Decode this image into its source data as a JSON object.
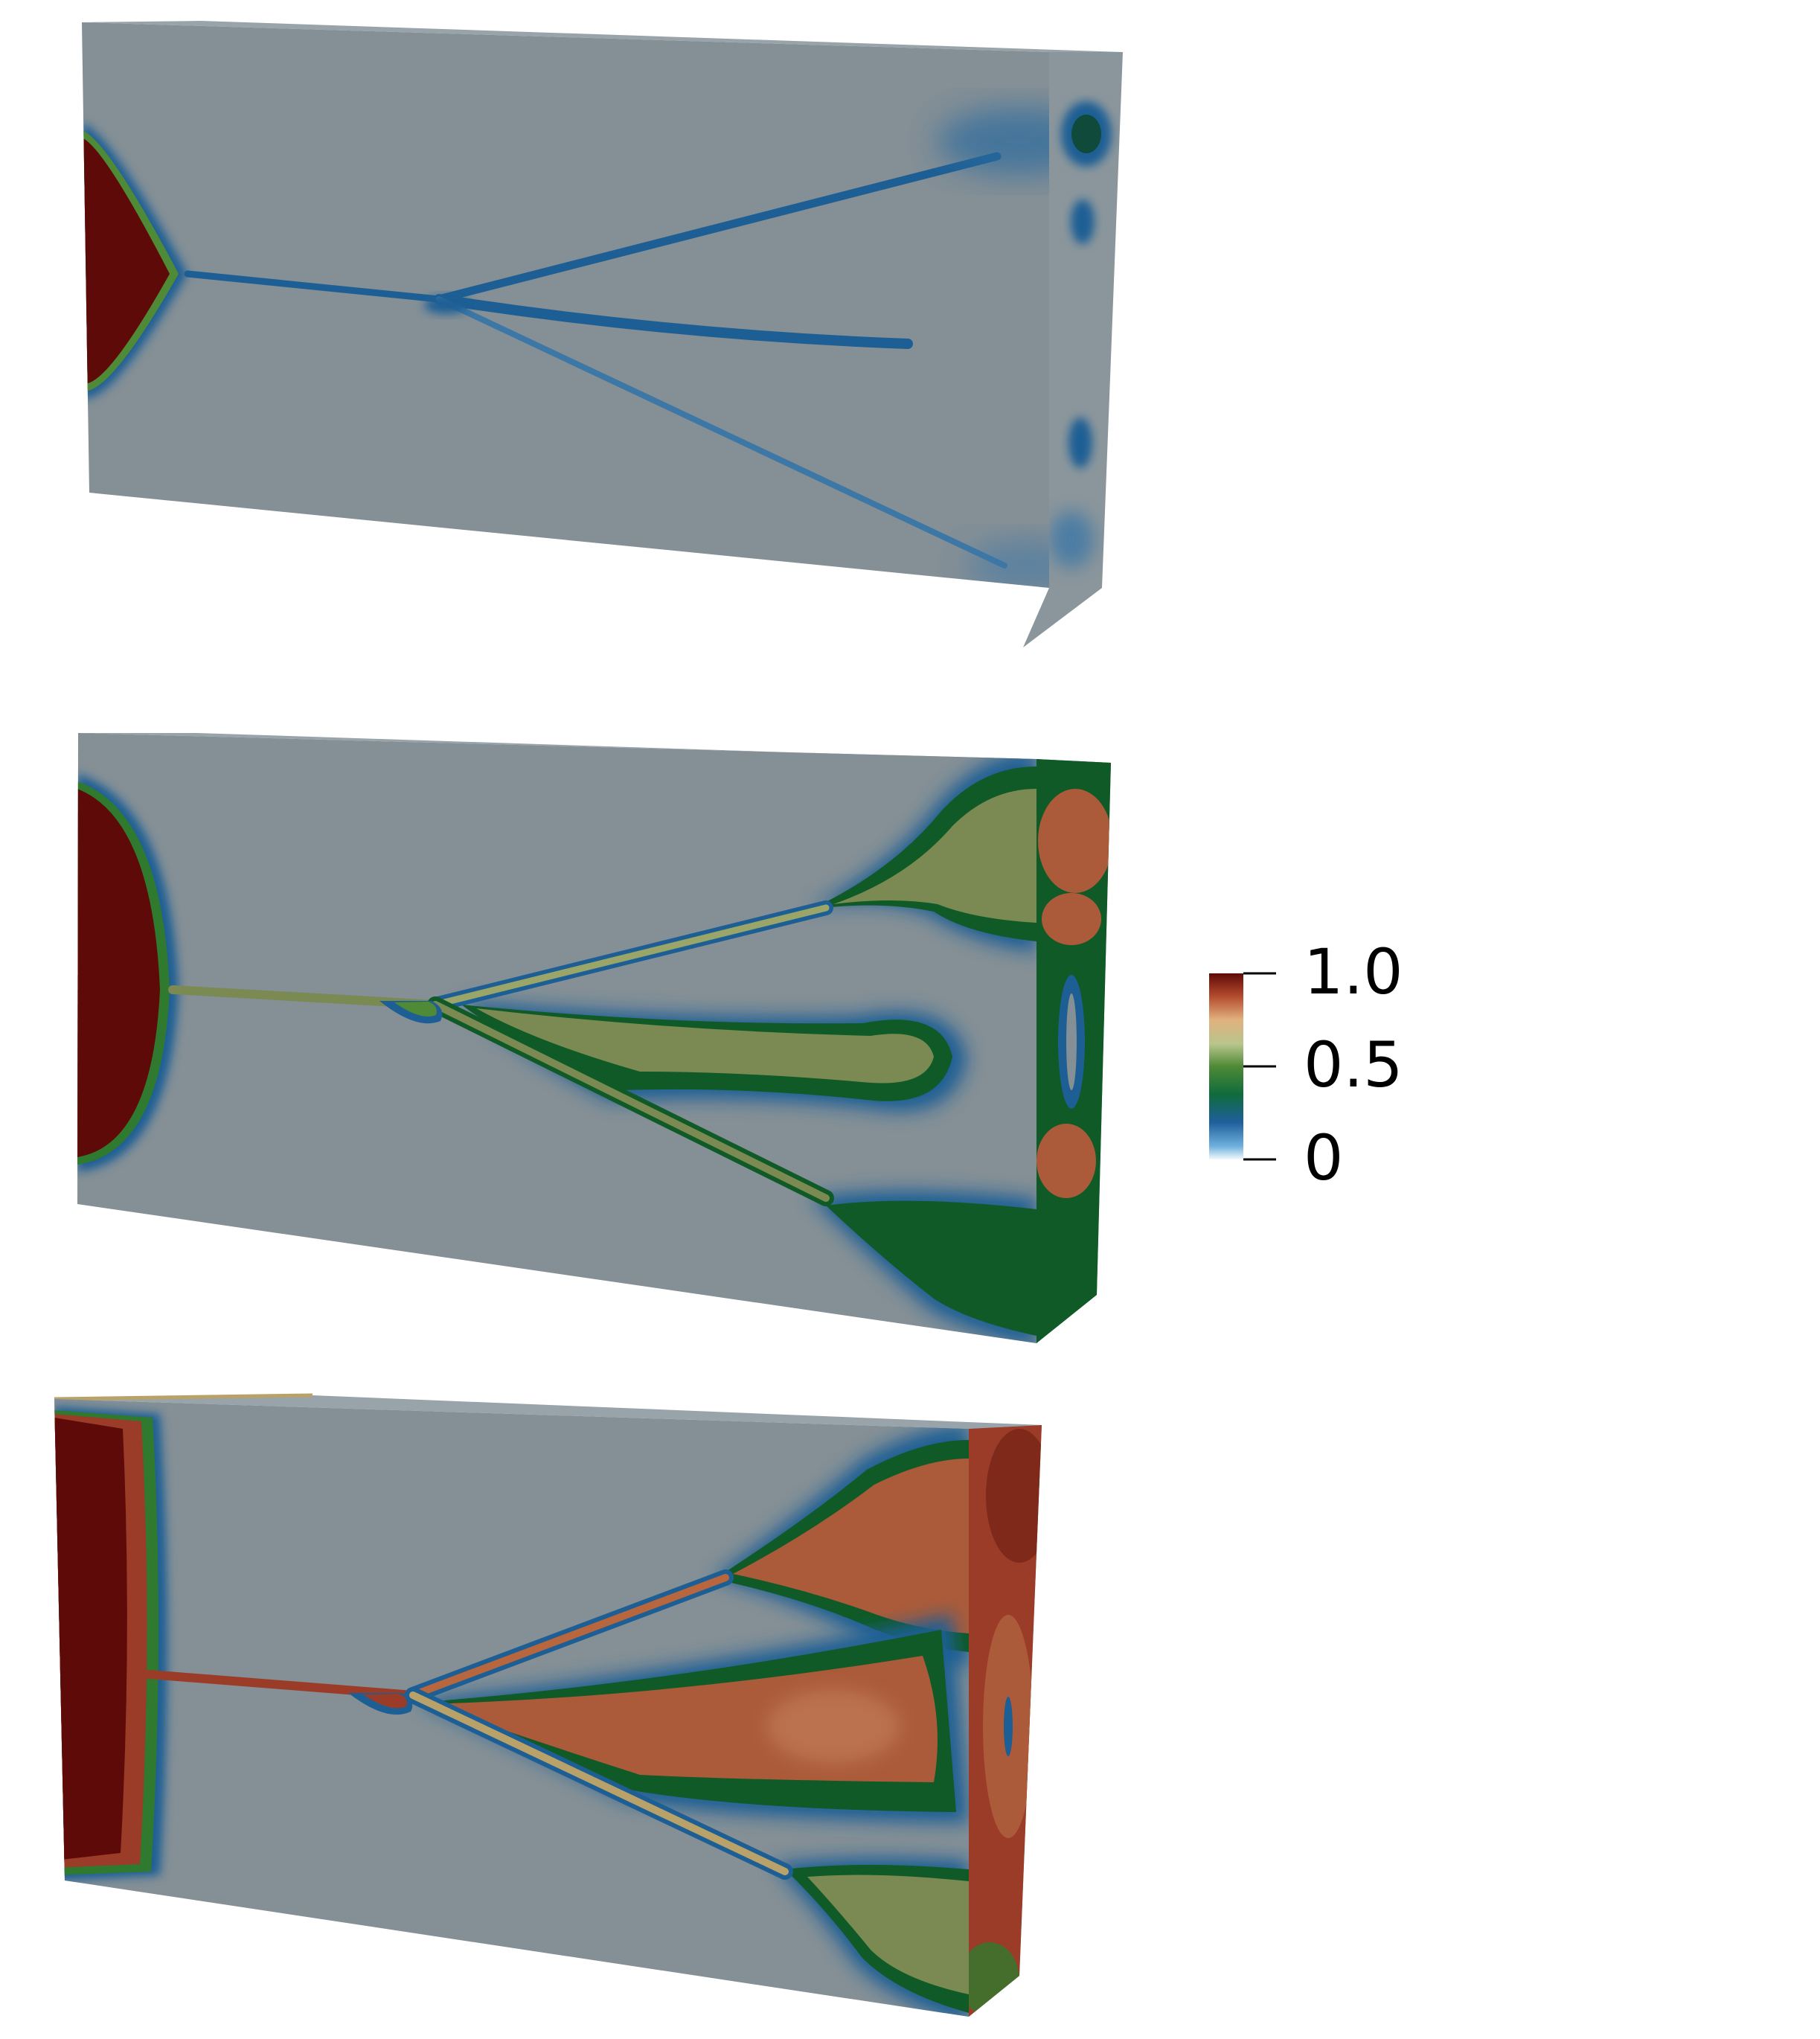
{
  "colorbar": {
    "ticks": [
      {
        "value": 1.0,
        "label": "1.0"
      },
      {
        "value": 0.5,
        "label": "0.5"
      },
      {
        "value": 0.0,
        "label": "0"
      }
    ],
    "stops": [
      {
        "at": 0.0,
        "color": "#f4f8fc"
      },
      {
        "at": 0.07,
        "color": "#6fb1dd"
      },
      {
        "at": 0.2,
        "color": "#1f5f9c"
      },
      {
        "at": 0.35,
        "color": "#0f6b3c"
      },
      {
        "at": 0.5,
        "color": "#4f8a36"
      },
      {
        "at": 0.62,
        "color": "#b8c58c"
      },
      {
        "at": 0.75,
        "color": "#e1b17e"
      },
      {
        "at": 0.88,
        "color": "#b2492c"
      },
      {
        "at": 1.0,
        "color": "#5e0a08"
      }
    ]
  },
  "colors": {
    "background_field": "#848f96",
    "top_face": "#98a4aa",
    "side_face": "#8e999f",
    "crack_red": "#5e0a08",
    "mid_red": "#9a3c28",
    "orange_red": "#ab5b3a",
    "green": "#0f5a26",
    "olive": "#7a8a52",
    "blue": "#1d5f94"
  },
  "panels": [
    {
      "name": "panel-1",
      "stage": 1
    },
    {
      "name": "panel-2",
      "stage": 2
    },
    {
      "name": "panel-3",
      "stage": 3
    }
  ]
}
